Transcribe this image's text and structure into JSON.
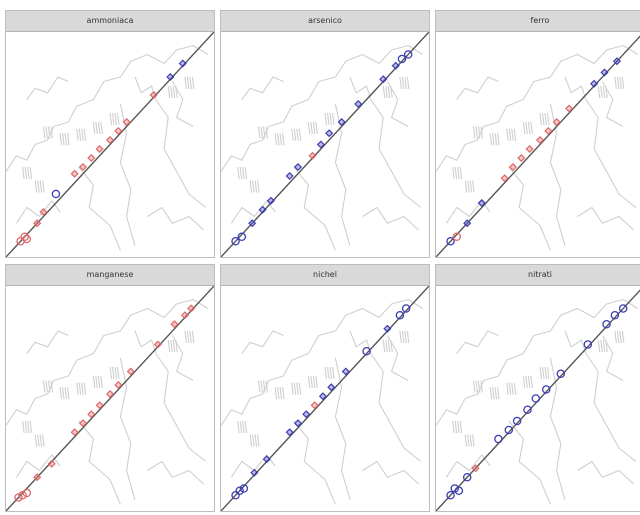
{
  "chart_data": {
    "type": "scatter",
    "layout": {
      "rows": 2,
      "cols": 3
    },
    "legend": "none",
    "grid": false,
    "colors": {
      "high": "#e06666",
      "low": "#3c3cb4",
      "line": "#555555",
      "map": "#cfcfcf",
      "strip": "#d9d9d9"
    },
    "panels": [
      {
        "title": "ammoniaca",
        "points": [
          {
            "x": 0.07,
            "y": 0.07,
            "level": "high",
            "marker": "circle"
          },
          {
            "x": 0.09,
            "y": 0.09,
            "level": "high",
            "marker": "circle"
          },
          {
            "x": 0.1,
            "y": 0.08,
            "level": "high",
            "marker": "circle"
          },
          {
            "x": 0.15,
            "y": 0.15,
            "level": "high",
            "marker": "diamond"
          },
          {
            "x": 0.18,
            "y": 0.2,
            "level": "high",
            "marker": "diamond"
          },
          {
            "x": 0.24,
            "y": 0.28,
            "level": "low",
            "marker": "circle"
          },
          {
            "x": 0.33,
            "y": 0.37,
            "level": "high",
            "marker": "diamond"
          },
          {
            "x": 0.37,
            "y": 0.4,
            "level": "high",
            "marker": "diamond"
          },
          {
            "x": 0.41,
            "y": 0.44,
            "level": "high",
            "marker": "diamond"
          },
          {
            "x": 0.45,
            "y": 0.48,
            "level": "high",
            "marker": "diamond"
          },
          {
            "x": 0.5,
            "y": 0.52,
            "level": "high",
            "marker": "diamond"
          },
          {
            "x": 0.54,
            "y": 0.56,
            "level": "high",
            "marker": "diamond"
          },
          {
            "x": 0.58,
            "y": 0.6,
            "level": "high",
            "marker": "diamond"
          },
          {
            "x": 0.71,
            "y": 0.72,
            "level": "high",
            "marker": "diamond"
          },
          {
            "x": 0.79,
            "y": 0.8,
            "level": "low",
            "marker": "diamond"
          },
          {
            "x": 0.85,
            "y": 0.86,
            "level": "low",
            "marker": "diamond"
          }
        ]
      },
      {
        "title": "arsenico",
        "points": [
          {
            "x": 0.07,
            "y": 0.07,
            "level": "low",
            "marker": "circle"
          },
          {
            "x": 0.1,
            "y": 0.09,
            "level": "low",
            "marker": "circle"
          },
          {
            "x": 0.15,
            "y": 0.15,
            "level": "low",
            "marker": "diamond"
          },
          {
            "x": 0.2,
            "y": 0.21,
            "level": "low",
            "marker": "diamond"
          },
          {
            "x": 0.24,
            "y": 0.25,
            "level": "low",
            "marker": "diamond"
          },
          {
            "x": 0.33,
            "y": 0.36,
            "level": "low",
            "marker": "diamond"
          },
          {
            "x": 0.37,
            "y": 0.4,
            "level": "low",
            "marker": "diamond"
          },
          {
            "x": 0.44,
            "y": 0.45,
            "level": "high",
            "marker": "diamond"
          },
          {
            "x": 0.48,
            "y": 0.5,
            "level": "low",
            "marker": "diamond"
          },
          {
            "x": 0.52,
            "y": 0.55,
            "level": "low",
            "marker": "diamond"
          },
          {
            "x": 0.58,
            "y": 0.6,
            "level": "low",
            "marker": "diamond"
          },
          {
            "x": 0.66,
            "y": 0.68,
            "level": "low",
            "marker": "diamond"
          },
          {
            "x": 0.78,
            "y": 0.79,
            "level": "low",
            "marker": "diamond"
          },
          {
            "x": 0.84,
            "y": 0.85,
            "level": "low",
            "marker": "diamond"
          },
          {
            "x": 0.87,
            "y": 0.88,
            "level": "low",
            "marker": "circle"
          },
          {
            "x": 0.9,
            "y": 0.9,
            "level": "low",
            "marker": "circle"
          }
        ]
      },
      {
        "title": "ferro",
        "points": [
          {
            "x": 0.07,
            "y": 0.07,
            "level": "low",
            "marker": "circle"
          },
          {
            "x": 0.1,
            "y": 0.09,
            "level": "high",
            "marker": "circle"
          },
          {
            "x": 0.15,
            "y": 0.15,
            "level": "low",
            "marker": "diamond"
          },
          {
            "x": 0.22,
            "y": 0.24,
            "level": "low",
            "marker": "diamond"
          },
          {
            "x": 0.33,
            "y": 0.35,
            "level": "high",
            "marker": "diamond"
          },
          {
            "x": 0.37,
            "y": 0.4,
            "level": "high",
            "marker": "diamond"
          },
          {
            "x": 0.41,
            "y": 0.44,
            "level": "high",
            "marker": "diamond"
          },
          {
            "x": 0.45,
            "y": 0.48,
            "level": "high",
            "marker": "diamond"
          },
          {
            "x": 0.5,
            "y": 0.52,
            "level": "high",
            "marker": "diamond"
          },
          {
            "x": 0.54,
            "y": 0.56,
            "level": "high",
            "marker": "diamond"
          },
          {
            "x": 0.58,
            "y": 0.6,
            "level": "high",
            "marker": "diamond"
          },
          {
            "x": 0.64,
            "y": 0.66,
            "level": "high",
            "marker": "diamond"
          },
          {
            "x": 0.76,
            "y": 0.77,
            "level": "low",
            "marker": "diamond"
          },
          {
            "x": 0.81,
            "y": 0.82,
            "level": "low",
            "marker": "diamond"
          },
          {
            "x": 0.87,
            "y": 0.87,
            "level": "low",
            "marker": "diamond"
          }
        ]
      },
      {
        "title": "manganese",
        "points": [
          {
            "x": 0.06,
            "y": 0.06,
            "level": "high",
            "marker": "circle"
          },
          {
            "x": 0.08,
            "y": 0.07,
            "level": "high",
            "marker": "circle"
          },
          {
            "x": 0.1,
            "y": 0.08,
            "level": "high",
            "marker": "circle"
          },
          {
            "x": 0.15,
            "y": 0.15,
            "level": "high",
            "marker": "diamond"
          },
          {
            "x": 0.22,
            "y": 0.21,
            "level": "high",
            "marker": "diamond"
          },
          {
            "x": 0.33,
            "y": 0.35,
            "level": "high",
            "marker": "diamond"
          },
          {
            "x": 0.37,
            "y": 0.39,
            "level": "high",
            "marker": "diamond"
          },
          {
            "x": 0.41,
            "y": 0.43,
            "level": "high",
            "marker": "diamond"
          },
          {
            "x": 0.45,
            "y": 0.47,
            "level": "high",
            "marker": "diamond"
          },
          {
            "x": 0.5,
            "y": 0.52,
            "level": "high",
            "marker": "diamond"
          },
          {
            "x": 0.54,
            "y": 0.56,
            "level": "high",
            "marker": "diamond"
          },
          {
            "x": 0.6,
            "y": 0.62,
            "level": "high",
            "marker": "diamond"
          },
          {
            "x": 0.73,
            "y": 0.74,
            "level": "high",
            "marker": "diamond"
          },
          {
            "x": 0.81,
            "y": 0.83,
            "level": "high",
            "marker": "diamond"
          },
          {
            "x": 0.86,
            "y": 0.87,
            "level": "high",
            "marker": "diamond"
          },
          {
            "x": 0.89,
            "y": 0.9,
            "level": "high",
            "marker": "diamond"
          }
        ]
      },
      {
        "title": "nichel",
        "points": [
          {
            "x": 0.07,
            "y": 0.07,
            "level": "low",
            "marker": "circle"
          },
          {
            "x": 0.09,
            "y": 0.09,
            "level": "low",
            "marker": "circle"
          },
          {
            "x": 0.11,
            "y": 0.1,
            "level": "low",
            "marker": "circle"
          },
          {
            "x": 0.16,
            "y": 0.17,
            "level": "low",
            "marker": "diamond"
          },
          {
            "x": 0.22,
            "y": 0.23,
            "level": "low",
            "marker": "diamond"
          },
          {
            "x": 0.33,
            "y": 0.35,
            "level": "low",
            "marker": "diamond"
          },
          {
            "x": 0.37,
            "y": 0.39,
            "level": "low",
            "marker": "diamond"
          },
          {
            "x": 0.41,
            "y": 0.43,
            "level": "low",
            "marker": "diamond"
          },
          {
            "x": 0.45,
            "y": 0.47,
            "level": "high",
            "marker": "diamond"
          },
          {
            "x": 0.49,
            "y": 0.51,
            "level": "low",
            "marker": "diamond"
          },
          {
            "x": 0.53,
            "y": 0.55,
            "level": "low",
            "marker": "diamond"
          },
          {
            "x": 0.6,
            "y": 0.62,
            "level": "low",
            "marker": "diamond"
          },
          {
            "x": 0.7,
            "y": 0.71,
            "level": "low",
            "marker": "circle"
          },
          {
            "x": 0.8,
            "y": 0.81,
            "level": "low",
            "marker": "diamond"
          },
          {
            "x": 0.86,
            "y": 0.87,
            "level": "low",
            "marker": "circle"
          },
          {
            "x": 0.89,
            "y": 0.9,
            "level": "low",
            "marker": "circle"
          }
        ]
      },
      {
        "title": "nitrati",
        "points": [
          {
            "x": 0.07,
            "y": 0.07,
            "level": "low",
            "marker": "circle"
          },
          {
            "x": 0.09,
            "y": 0.1,
            "level": "low",
            "marker": "circle"
          },
          {
            "x": 0.11,
            "y": 0.09,
            "level": "low",
            "marker": "circle"
          },
          {
            "x": 0.15,
            "y": 0.15,
            "level": "low",
            "marker": "circle"
          },
          {
            "x": 0.19,
            "y": 0.19,
            "level": "high",
            "marker": "diamond"
          },
          {
            "x": 0.3,
            "y": 0.32,
            "level": "low",
            "marker": "circle"
          },
          {
            "x": 0.35,
            "y": 0.36,
            "level": "low",
            "marker": "circle"
          },
          {
            "x": 0.39,
            "y": 0.4,
            "level": "low",
            "marker": "circle"
          },
          {
            "x": 0.44,
            "y": 0.45,
            "level": "low",
            "marker": "circle"
          },
          {
            "x": 0.48,
            "y": 0.5,
            "level": "low",
            "marker": "circle"
          },
          {
            "x": 0.53,
            "y": 0.54,
            "level": "low",
            "marker": "circle"
          },
          {
            "x": 0.6,
            "y": 0.61,
            "level": "low",
            "marker": "circle"
          },
          {
            "x": 0.73,
            "y": 0.74,
            "level": "low",
            "marker": "circle"
          },
          {
            "x": 0.82,
            "y": 0.83,
            "level": "low",
            "marker": "circle"
          },
          {
            "x": 0.86,
            "y": 0.87,
            "level": "low",
            "marker": "circle"
          },
          {
            "x": 0.9,
            "y": 0.9,
            "level": "low",
            "marker": "circle"
          }
        ]
      }
    ]
  }
}
